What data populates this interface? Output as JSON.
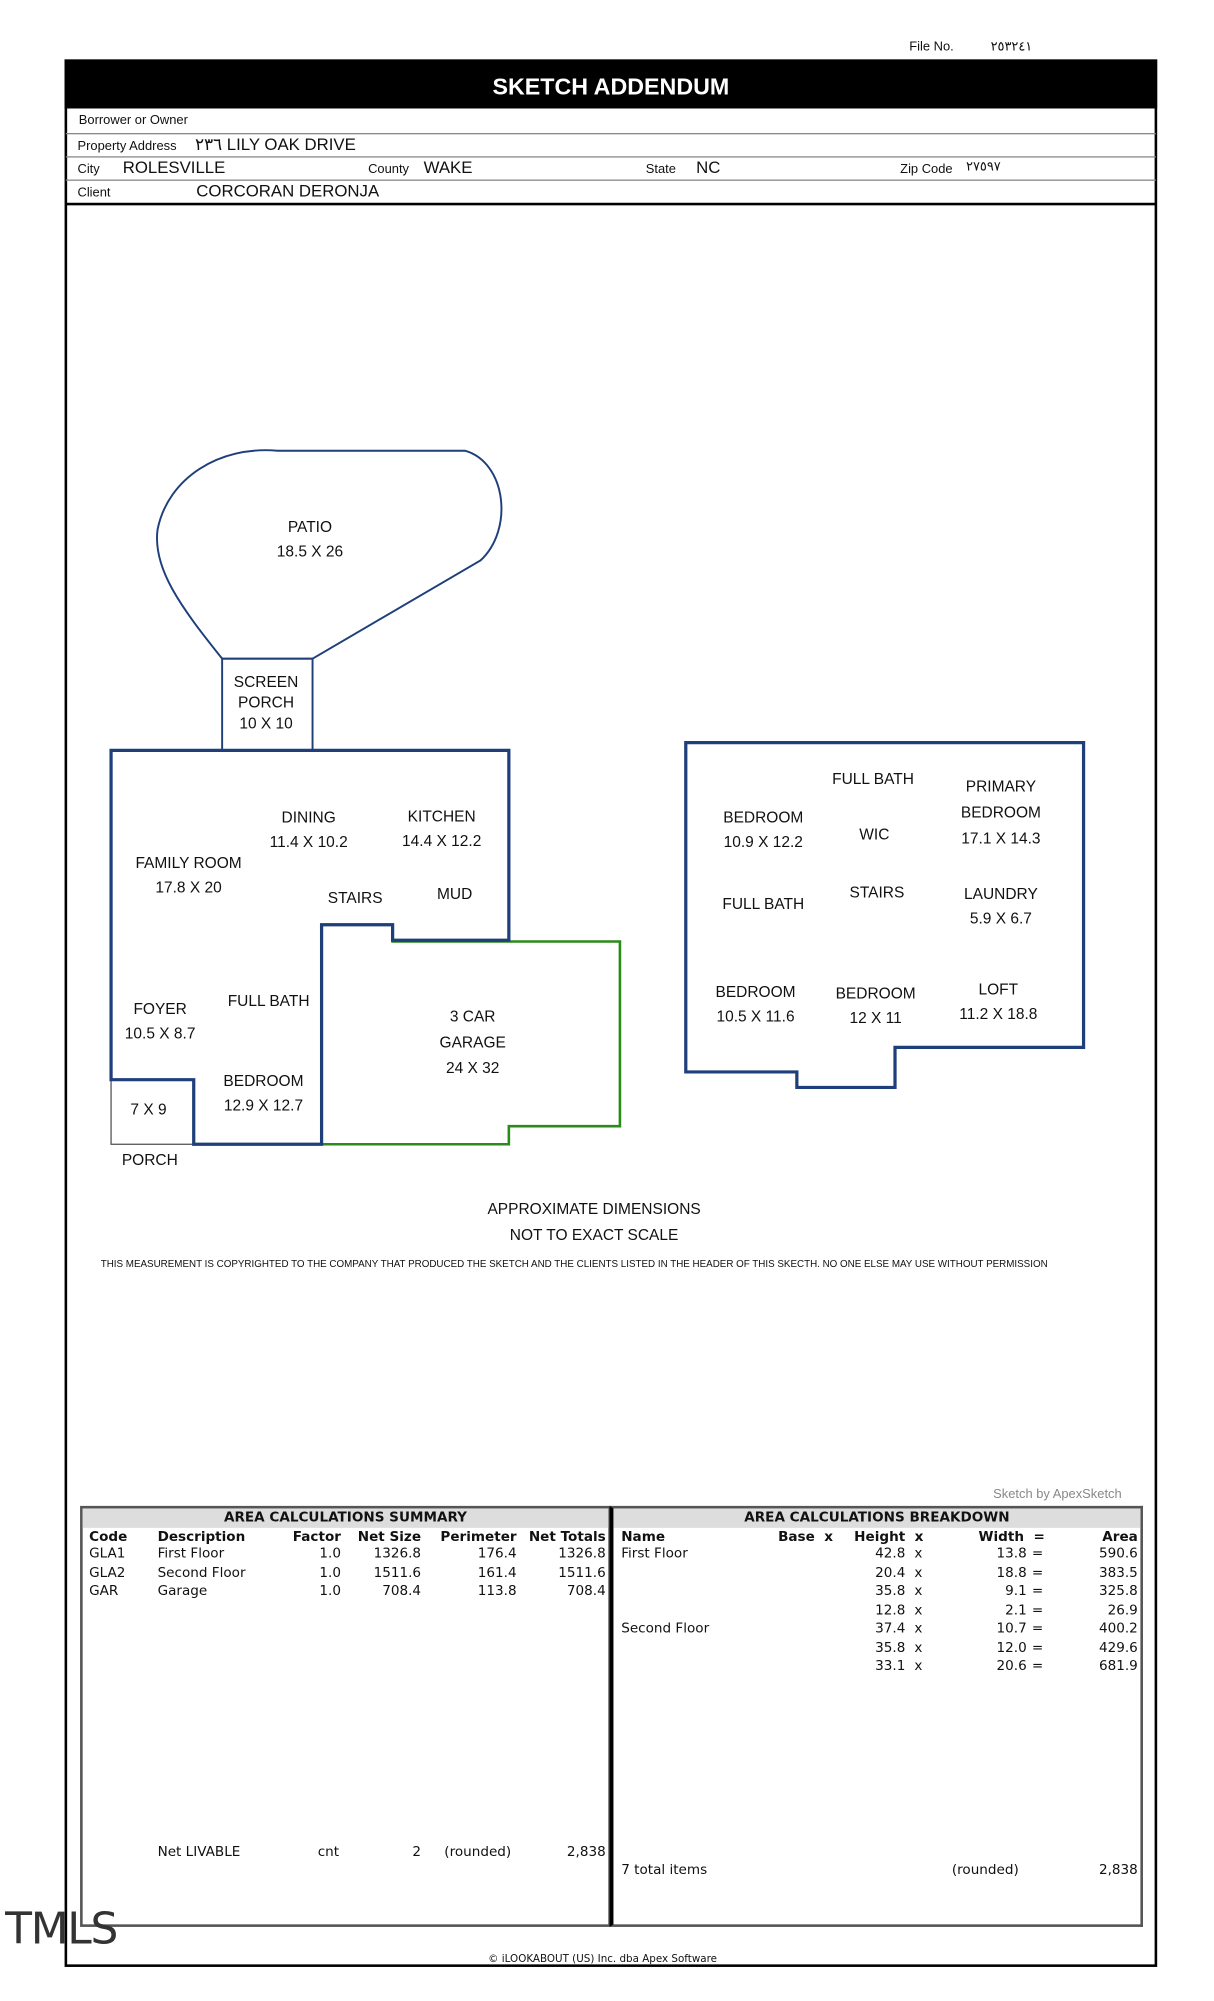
{
  "header": {
    "file_no_label": "File No.",
    "file_no": "٢٥٣٢٤١",
    "title": "SKETCH ADDENDUM",
    "borrower_label": "Borrower or Owner",
    "borrower": "",
    "address_label": "Property Address",
    "address": "٢٣٦ LILY OAK DRIVE",
    "city_label": "City",
    "city": "ROLESVILLE",
    "county_label": "County",
    "county": "WAKE",
    "state_label": "State",
    "state": "NC",
    "zip_label": "Zip Code",
    "zip": "٢٧٥٩٧",
    "client_label": "Client",
    "client": "CORCORAN DERONJA"
  },
  "colors": {
    "first_floor": "#1f3f7a",
    "garage": "#2a8a1a",
    "porch": "#555555"
  },
  "rooms": {
    "patio": [
      "PATIO",
      "18.5 X 26"
    ],
    "screen_porch": [
      "SCREEN",
      "PORCH",
      "10 X 10"
    ],
    "dining": [
      "DINING",
      "11.4 X 10.2"
    ],
    "kitchen": [
      "KITCHEN",
      "14.4 X 12.2"
    ],
    "family": [
      "FAMILY ROOM",
      "17.8 X 20"
    ],
    "stairs1": "STAIRS",
    "mud": "MUD",
    "foyer": [
      "FOYER",
      "10.5 X 8.7"
    ],
    "full_bath1": "FULL BATH",
    "garage": [
      "3 CAR",
      "GARAGE",
      "24 X 32"
    ],
    "bedroom1": [
      "BEDROOM",
      "12.9 X 12.7"
    ],
    "porch_dim": "7 X 9",
    "porch": "PORCH",
    "bedroom2": [
      "BEDROOM",
      "10.9 X 12.2"
    ],
    "full_bath2": "FULL BATH",
    "wic": "WIC",
    "primary": [
      "PRIMARY",
      "BEDROOM",
      "17.1 X 14.3"
    ],
    "full_bath3": "FULL BATH",
    "stairs2": "STAIRS",
    "laundry": [
      "LAUNDRY",
      "5.9 X 6.7"
    ],
    "bedroom3": [
      "BEDROOM",
      "10.5 X 11.6"
    ],
    "bedroom4": [
      "BEDROOM",
      "12 X 11"
    ],
    "loft": [
      "LOFT",
      "11.2 X 18.8"
    ]
  },
  "notes": {
    "approx1": "APPROXIMATE DIMENSIONS",
    "approx2": "NOT TO EXACT SCALE",
    "copyright_notice": "THIS MEASUREMENT IS COPYRIGHTED TO THE COMPANY THAT PRODUCED THE SKETCH AND THE CLIENTS LISTED IN THE HEADER OF THIS SKECTH. NO ONE ELSE MAY USE WITHOUT PERMISSION",
    "sketch_by": "Sketch by ApexSketch",
    "footer": "© iLOOKABOUT (US) Inc. dba Apex Software",
    "watermark": "TMLS"
  },
  "summary": {
    "title": "AREA CALCULATIONS SUMMARY",
    "columns": [
      "Code",
      "Description",
      "Factor",
      "Net Size",
      "Perimeter",
      "Net Totals"
    ],
    "rows": [
      [
        "GLA1",
        "First Floor",
        "1.0",
        "1326.8",
        "176.4",
        "1326.8"
      ],
      [
        "GLA2",
        "Second Floor",
        "1.0",
        "1511.6",
        "161.4",
        "1511.6"
      ],
      [
        "GAR",
        "Garage",
        "1.0",
        "708.4",
        "113.8",
        "708.4"
      ]
    ],
    "footer": [
      "Net LIVABLE",
      "cnt",
      "2",
      "(rounded)",
      "2,838"
    ]
  },
  "breakdown": {
    "title": "AREA CALCULATIONS BREAKDOWN",
    "columns": [
      "Name",
      "Base  x",
      "Height  x",
      "Width  =",
      "Area"
    ],
    "rows": [
      [
        "First Floor",
        "",
        "42.8",
        "13.8",
        "590.6"
      ],
      [
        "",
        "",
        "20.4",
        "18.8",
        "383.5"
      ],
      [
        "",
        "",
        "35.8",
        "9.1",
        "325.8"
      ],
      [
        "",
        "",
        "12.8",
        "2.1",
        "26.9"
      ],
      [
        "Second Floor",
        "",
        "37.4",
        "10.7",
        "400.2"
      ],
      [
        "",
        "",
        "35.8",
        "12.0",
        "429.6"
      ],
      [
        "",
        "",
        "33.1",
        "20.6",
        "681.9"
      ]
    ],
    "x_sym": "x",
    "eq_sym": "=",
    "footer": [
      "7 total items",
      "(rounded)",
      "2,838"
    ]
  }
}
